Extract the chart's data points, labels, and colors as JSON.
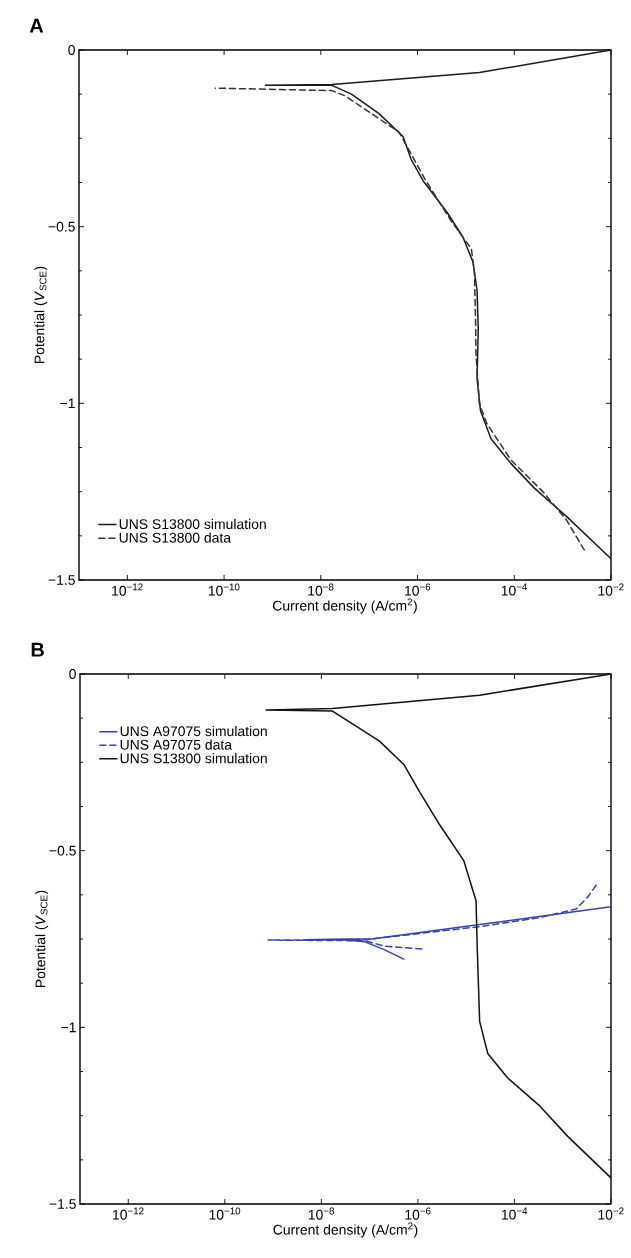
{
  "chart_data": [
    {
      "type": "line",
      "title": "A",
      "xlabel": "Current density (A/cm$^{2}$)",
      "ylabel": "Potential (*V*$_{SCE}$)",
      "log": "x",
      "legend": "bottom left",
      "marker": "none",
      "xlim": [
        1e-13,
        0.01
      ],
      "ylim": [
        -1.5,
        0
      ],
      "xticks": [
        {
          "value": 1e-12,
          "label": "10$^{−12}$"
        },
        {
          "value": 1e-10,
          "label": "10$^{−10}$"
        },
        {
          "value": 1e-08,
          "label": "10$^{−8}$"
        },
        {
          "value": 1e-06,
          "label": "10$^{−6}$"
        },
        {
          "value": 0.0001,
          "label": "10$^{−4}$"
        },
        {
          "value": 0.01,
          "label": "10$^{−2}$"
        }
      ],
      "yticks": [
        {
          "value": -1.5,
          "label": "−1.5"
        },
        {
          "value": -1,
          "label": "−1"
        },
        {
          "value": -0.5,
          "label": "−0.5"
        },
        0
      ],
      "series": [
        {
          "name": "UNS S13800 simulation",
          "color": "#1a1a1a",
          "line_style": "solid",
          "x": [
            0.01,
            0.0012,
            0.00026,
            8.5e-05,
            3.3e-05,
            2e-05,
            1.7e-05,
            1.8e-05,
            1.7e-05,
            1.4e-05,
            8.7e-06,
            4.1e-06,
            1.3e-06,
            7.4e-07,
            5e-07,
            1.6e-07,
            4.3e-08,
            1.7e-08,
            7.2e-10,
            1.7e-08,
            1.9e-05,
            0.01
          ],
          "values": [
            -1.44,
            -1.32,
            -1.24,
            -1.17,
            -1.1,
            -1.02,
            -0.93,
            -0.79,
            -0.68,
            -0.6,
            -0.53,
            -0.46,
            -0.37,
            -0.31,
            -0.245,
            -0.18,
            -0.125,
            -0.1,
            -0.1,
            -0.098,
            -0.064,
            0
          ]
        },
        {
          "name": "UNS S13800 data",
          "color": "#333333",
          "line_style": "dashed",
          "x": [
            0.0028,
            0.0012,
            0.00039,
            8.5e-05,
            2.7e-05,
            1.9e-05,
            1.6e-05,
            1.6e-05,
            1.5e-05,
            1.3e-05,
            4.9e-06,
            1.4e-06,
            4.2e-07,
            3.2e-08,
            1.7e-08,
            6.6e-11
          ],
          "values": [
            -1.415,
            -1.33,
            -1.25,
            -1.16,
            -1.057,
            -1.0,
            -0.85,
            -0.79,
            -0.63,
            -0.563,
            -0.483,
            -0.364,
            -0.233,
            -0.13,
            -0.115,
            -0.108
          ]
        }
      ]
    },
    {
      "type": "line",
      "title": "B",
      "xlabel": "Current density (A/cm$^{2}$)",
      "ylabel": "Potential (*V*$_{SCE}$)",
      "log": "x",
      "legend": "top left",
      "marker": "none",
      "xlim": [
        1e-13,
        0.01
      ],
      "ylim": [
        -1.5,
        0
      ],
      "xticks": [
        {
          "value": 1e-12,
          "label": "10$^{−12}$"
        },
        {
          "value": 1e-10,
          "label": "10$^{−10}$"
        },
        {
          "value": 1e-08,
          "label": "10$^{−8}$"
        },
        {
          "value": 1e-06,
          "label": "10$^{−6}$"
        },
        {
          "value": 0.0001,
          "label": "10$^{−4}$"
        },
        {
          "value": 0.01,
          "label": "10$^{−2}$"
        }
      ],
      "yticks": [
        {
          "value": -1.5,
          "label": "−1.5"
        },
        {
          "value": -1,
          "label": "−1"
        },
        {
          "value": -0.5,
          "label": "−0.5"
        },
        0
      ],
      "series": [
        {
          "name": "UNS A97075 simulation",
          "color": "#3a44a0",
          "line_style": "solid",
          "x": [
            5.1e-07,
            2e-07,
            8e-08,
            3e-08,
            4.3e-09,
            3e-08,
            1.1e-07,
            1.9e-05,
            0.01
          ],
          "values": [
            -0.807,
            -0.78,
            -0.758,
            -0.752,
            -0.752,
            -0.75,
            -0.75,
            -0.709,
            -0.659
          ]
        },
        {
          "name": "UNS A97075 data",
          "color": "#3a44a0",
          "line_style": "dashed",
          "x": [
            1.2e-06,
            2e-07,
            8e-08,
            7.9e-10,
            8e-08,
            1.9e-05,
            0.00032,
            0.0019,
            0.0033,
            0.0054
          ],
          "values": [
            -0.778,
            -0.77,
            -0.755,
            -0.753,
            -0.752,
            -0.715,
            -0.69,
            -0.665,
            -0.631,
            -0.59
          ]
        },
        {
          "name": "UNS S13800 simulation",
          "color": "#111111",
          "line_style": "solid",
          "x": [
            0.01,
            0.0013,
            0.00032,
            7.1e-05,
            2.8e-05,
            1.9e-05,
            1.7e-05,
            1.6e-05,
            8.9e-06,
            2.8e-06,
            1.1e-06,
            5.1e-07,
            1.6e-07,
            1.7e-08,
            7.2e-10,
            1.7e-08,
            1.9e-05,
            0.01
          ],
          "values": [
            -1.426,
            -1.31,
            -1.22,
            -1.142,
            -1.074,
            -0.983,
            -0.78,
            -0.642,
            -0.528,
            -0.426,
            -0.335,
            -0.256,
            -0.19,
            -0.105,
            -0.102,
            -0.098,
            -0.06,
            0
          ]
        }
      ]
    }
  ]
}
